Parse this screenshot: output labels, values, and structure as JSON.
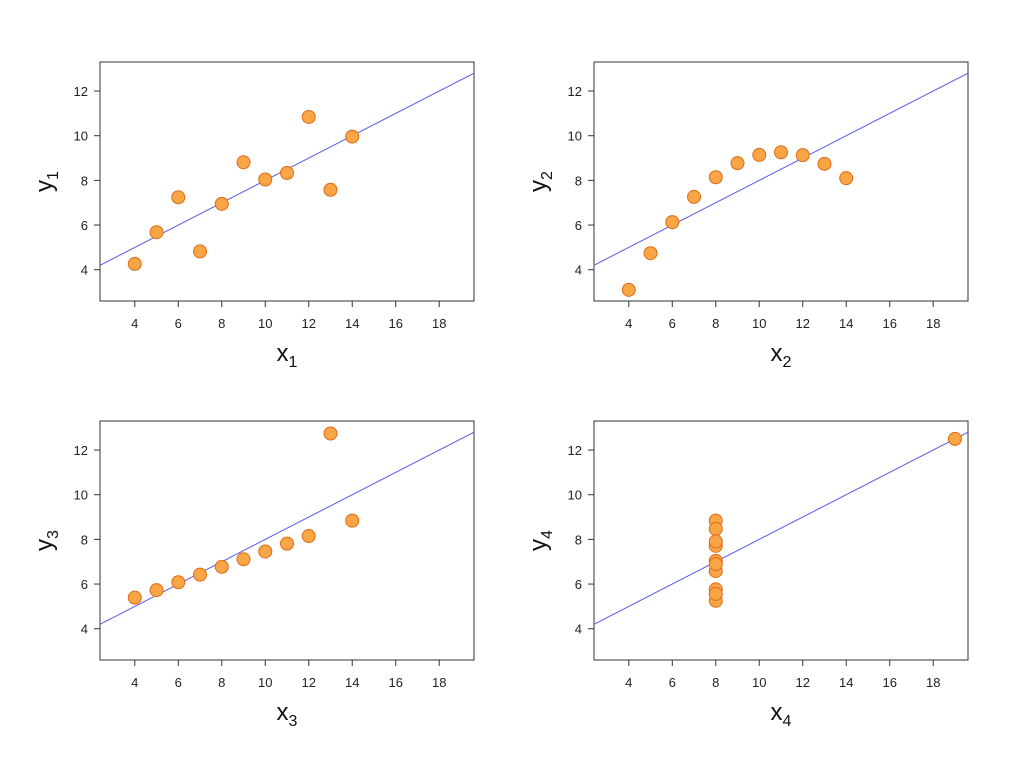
{
  "chart_data": [
    {
      "type": "scatter",
      "title": "",
      "xlabel": "x",
      "xlabel_sub": "1",
      "ylabel": "y",
      "ylabel_sub": "1",
      "xlim": [
        2.4,
        19.6
      ],
      "ylim": [
        2.6,
        13.3
      ],
      "xticks": [
        4,
        6,
        8,
        10,
        12,
        14,
        16,
        18
      ],
      "yticks": [
        4,
        6,
        8,
        10,
        12
      ],
      "grid": false,
      "points": {
        "x": [
          10,
          8,
          13,
          9,
          11,
          14,
          6,
          4,
          12,
          7,
          5
        ],
        "y": [
          8.04,
          6.95,
          7.58,
          8.81,
          8.33,
          9.96,
          7.24,
          4.26,
          10.84,
          4.82,
          5.68
        ]
      },
      "fit_line": {
        "intercept": 3.0,
        "slope": 0.5
      }
    },
    {
      "type": "scatter",
      "title": "",
      "xlabel": "x",
      "xlabel_sub": "2",
      "ylabel": "y",
      "ylabel_sub": "2",
      "xlim": [
        2.4,
        19.6
      ],
      "ylim": [
        2.6,
        13.3
      ],
      "xticks": [
        4,
        6,
        8,
        10,
        12,
        14,
        16,
        18
      ],
      "yticks": [
        4,
        6,
        8,
        10,
        12
      ],
      "grid": false,
      "points": {
        "x": [
          10,
          8,
          13,
          9,
          11,
          14,
          6,
          4,
          12,
          7,
          5
        ],
        "y": [
          9.14,
          8.14,
          8.74,
          8.77,
          9.26,
          8.1,
          6.13,
          3.1,
          9.13,
          7.26,
          4.74
        ]
      },
      "fit_line": {
        "intercept": 3.0,
        "slope": 0.5
      }
    },
    {
      "type": "scatter",
      "title": "",
      "xlabel": "x",
      "xlabel_sub": "3",
      "ylabel": "y",
      "ylabel_sub": "3",
      "xlim": [
        2.4,
        19.6
      ],
      "ylim": [
        2.6,
        13.3
      ],
      "xticks": [
        4,
        6,
        8,
        10,
        12,
        14,
        16,
        18
      ],
      "yticks": [
        4,
        6,
        8,
        10,
        12
      ],
      "grid": false,
      "points": {
        "x": [
          10,
          8,
          13,
          9,
          11,
          14,
          6,
          4,
          12,
          7,
          5
        ],
        "y": [
          7.46,
          6.77,
          12.74,
          7.11,
          7.81,
          8.84,
          6.08,
          5.39,
          8.15,
          6.42,
          5.73
        ]
      },
      "fit_line": {
        "intercept": 3.0,
        "slope": 0.5
      }
    },
    {
      "type": "scatter",
      "title": "",
      "xlabel": "x",
      "xlabel_sub": "4",
      "ylabel": "y",
      "ylabel_sub": "4",
      "xlim": [
        2.4,
        19.6
      ],
      "ylim": [
        2.6,
        13.3
      ],
      "xticks": [
        4,
        6,
        8,
        10,
        12,
        14,
        16,
        18
      ],
      "yticks": [
        4,
        6,
        8,
        10,
        12
      ],
      "grid": false,
      "points": {
        "x": [
          8,
          8,
          8,
          8,
          8,
          8,
          8,
          19,
          8,
          8,
          8
        ],
        "y": [
          6.58,
          5.76,
          7.71,
          8.84,
          8.47,
          7.04,
          5.25,
          12.5,
          5.56,
          7.91,
          6.89
        ]
      },
      "fit_line": {
        "intercept": 3.0,
        "slope": 0.5
      }
    }
  ],
  "colors": {
    "point_fill": "#f8a545",
    "point_stroke": "#e06b18",
    "fit_line": "#5a5ae6",
    "frame": "#333333",
    "text": "#222222"
  }
}
